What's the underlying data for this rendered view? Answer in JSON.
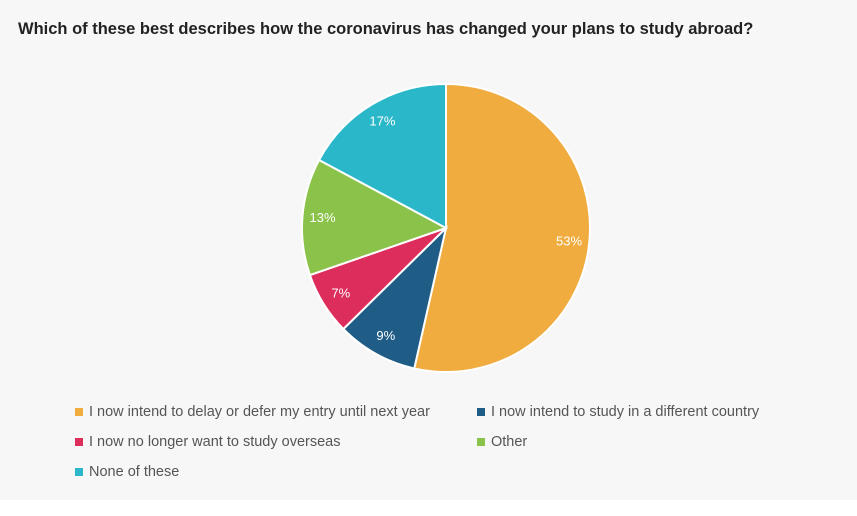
{
  "chart_data": {
    "type": "pie",
    "title": "Which of these best describes how the coronavirus has changed your plans to study abroad?",
    "slices": [
      {
        "label": "I now intend to delay or defer my entry until next year",
        "value": 53,
        "display": "53%",
        "color": "#f0ac3e"
      },
      {
        "label": "I now intend to study in a different country",
        "value": 9,
        "display": "9%",
        "color": "#1f5d87"
      },
      {
        "label": "I now no longer want to study overseas",
        "value": 7,
        "display": "7%",
        "color": "#dd2d5c"
      },
      {
        "label": "Other",
        "value": 13,
        "display": "13%",
        "color": "#8bc34a"
      },
      {
        "label": "None of these",
        "value": 17,
        "display": "17%",
        "color": "#2ab7c9"
      }
    ],
    "legend_position": "bottom"
  }
}
